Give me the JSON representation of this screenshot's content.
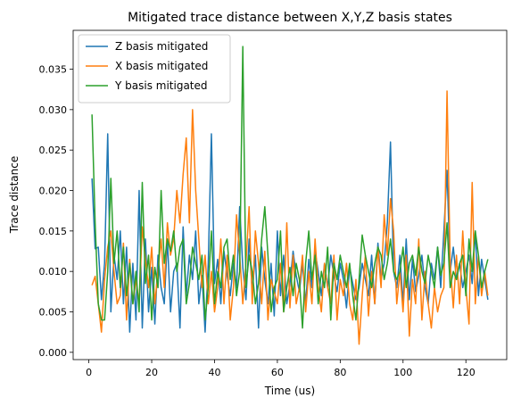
{
  "chart_data": {
    "type": "line",
    "title": "Mitigated trace distance between X,Y,Z basis states",
    "xlabel": "Time (us)",
    "ylabel": "Trace distance",
    "xlim": [
      -5,
      133
    ],
    "ylim": [
      -0.0009,
      0.0398
    ],
    "xticks": [
      0,
      20,
      40,
      60,
      80,
      100,
      120
    ],
    "yticks": [
      0.0,
      0.005,
      0.01,
      0.015,
      0.02,
      0.025,
      0.03,
      0.035
    ],
    "ytick_labels": [
      "0.000",
      "0.005",
      "0.010",
      "0.015",
      "0.020",
      "0.025",
      "0.030",
      "0.035"
    ],
    "xtick_labels": [
      "0",
      "20",
      "40",
      "60",
      "80",
      "100",
      "120"
    ],
    "legend_position": "top-left",
    "grid": false,
    "x_start": 1,
    "x_step": 1,
    "series": [
      {
        "name": "Z basis mitigated",
        "color": "#1f77b4",
        "values": [
          0.0215,
          0.0128,
          0.013,
          0.0065,
          0.011,
          0.027,
          0.005,
          0.012,
          0.009,
          0.015,
          0.006,
          0.013,
          0.0025,
          0.011,
          0.004,
          0.02,
          0.003,
          0.014,
          0.005,
          0.0105,
          0.0035,
          0.012,
          0.008,
          0.006,
          0.014,
          0.005,
          0.01,
          0.011,
          0.003,
          0.0155,
          0.007,
          0.012,
          0.009,
          0.015,
          0.006,
          0.0095,
          0.0025,
          0.011,
          0.027,
          0.0085,
          0.0115,
          0.006,
          0.0125,
          0.0095,
          0.007,
          0.011,
          0.008,
          0.018,
          0.0105,
          0.0065,
          0.014,
          0.0075,
          0.012,
          0.003,
          0.013,
          0.009,
          0.006,
          0.011,
          0.0045,
          0.015,
          0.007,
          0.012,
          0.006,
          0.0085,
          0.0125,
          0.0095,
          0.0075,
          0.011,
          0.006,
          0.0115,
          0.008,
          0.0125,
          0.01,
          0.007,
          0.011,
          0.008,
          0.012,
          0.0095,
          0.0075,
          0.011,
          0.009,
          0.0055,
          0.0105,
          0.0085,
          0.0065,
          0.008,
          0.011,
          0.009,
          0.007,
          0.012,
          0.006,
          0.0135,
          0.009,
          0.011,
          0.016,
          0.026,
          0.01,
          0.008,
          0.012,
          0.006,
          0.014,
          0.0065,
          0.0115,
          0.0075,
          0.0095,
          0.012,
          0.008,
          0.006,
          0.011,
          0.009,
          0.013,
          0.008,
          0.015,
          0.0225,
          0.01,
          0.013,
          0.009,
          0.011,
          0.008,
          0.01,
          0.012,
          0.0085,
          0.015,
          0.007,
          0.0115,
          0.009,
          0.0065
        ]
      },
      {
        "name": "X basis mitigated",
        "color": "#ff7f0e",
        "values": [
          0.0083,
          0.0094,
          0.006,
          0.0025,
          0.009,
          0.013,
          0.015,
          0.01,
          0.006,
          0.007,
          0.0135,
          0.004,
          0.0115,
          0.006,
          0.009,
          0.006,
          0.0155,
          0.0115,
          0.008,
          0.013,
          0.006,
          0.01,
          0.014,
          0.008,
          0.016,
          0.012,
          0.014,
          0.02,
          0.016,
          0.022,
          0.0265,
          0.016,
          0.03,
          0.02,
          0.014,
          0.008,
          0.012,
          0.006,
          0.01,
          0.005,
          0.008,
          0.014,
          0.006,
          0.012,
          0.004,
          0.008,
          0.017,
          0.012,
          0.006,
          0.011,
          0.018,
          0.006,
          0.015,
          0.011,
          0.006,
          0.0125,
          0.004,
          0.009,
          0.0075,
          0.006,
          0.011,
          0.005,
          0.016,
          0.0055,
          0.012,
          0.006,
          0.008,
          0.012,
          0.005,
          0.01,
          0.006,
          0.014,
          0.008,
          0.005,
          0.011,
          0.008,
          0.006,
          0.012,
          0.004,
          0.009,
          0.007,
          0.011,
          0.006,
          0.004,
          0.009,
          0.001,
          0.007,
          0.012,
          0.0045,
          0.01,
          0.006,
          0.013,
          0.008,
          0.017,
          0.012,
          0.019,
          0.015,
          0.006,
          0.01,
          0.005,
          0.012,
          0.002,
          0.009,
          0.006,
          0.014,
          0.004,
          0.01,
          0.006,
          0.003,
          0.008,
          0.005,
          0.007,
          0.008,
          0.0323,
          0.011,
          0.0055,
          0.012,
          0.006,
          0.015,
          0.008,
          0.0035,
          0.021,
          0.006,
          0.012,
          0.007,
          0.01,
          0.007
        ]
      },
      {
        "name": "Y basis mitigated",
        "color": "#2ca02c",
        "values": [
          0.0294,
          0.016,
          0.006,
          0.004,
          0.004,
          0.01,
          0.0215,
          0.011,
          0.015,
          0.008,
          0.013,
          0.007,
          0.011,
          0.006,
          0.01,
          0.005,
          0.021,
          0.0085,
          0.012,
          0.004,
          0.0105,
          0.008,
          0.02,
          0.011,
          0.014,
          0.0125,
          0.015,
          0.01,
          0.013,
          0.014,
          0.006,
          0.0085,
          0.013,
          0.011,
          0.009,
          0.012,
          0.004,
          0.008,
          0.015,
          0.006,
          0.01,
          0.008,
          0.013,
          0.014,
          0.009,
          0.012,
          0.007,
          0.01,
          0.0378,
          0.008,
          0.012,
          0.01,
          0.006,
          0.0085,
          0.014,
          0.018,
          0.012,
          0.005,
          0.008,
          0.009,
          0.015,
          0.005,
          0.008,
          0.0105,
          0.007,
          0.011,
          0.009,
          0.003,
          0.011,
          0.015,
          0.009,
          0.012,
          0.006,
          0.01,
          0.008,
          0.013,
          0.004,
          0.011,
          0.009,
          0.012,
          0.01,
          0.008,
          0.011,
          0.007,
          0.004,
          0.009,
          0.0145,
          0.012,
          0.01,
          0.008,
          0.011,
          0.013,
          0.012,
          0.009,
          0.011,
          0.014,
          0.01,
          0.009,
          0.01,
          0.013,
          0.008,
          0.011,
          0.012,
          0.0095,
          0.013,
          0.01,
          0.0085,
          0.012,
          0.01,
          0.008,
          0.013,
          0.0095,
          0.011,
          0.016,
          0.008,
          0.01,
          0.009,
          0.011,
          0.012,
          0.007,
          0.014,
          0.01,
          0.015,
          0.012,
          0.008,
          0.01,
          0.0115
        ]
      }
    ]
  }
}
